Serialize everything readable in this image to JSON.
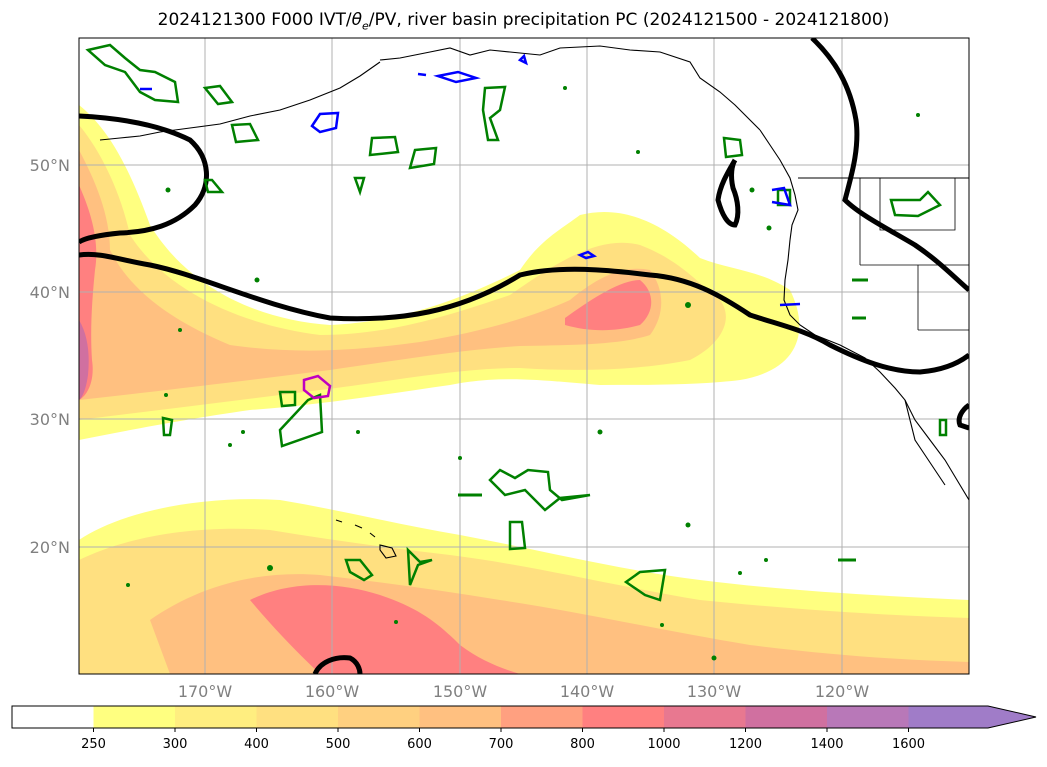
{
  "title": "2024121300 F000 IVT/θe/PV, river basin precipitation PC (2024121500 - 2024121800)",
  "title_parts": {
    "prefix": "2024121300 F000 IVT/",
    "theta": "θ",
    "theta_sub": "e",
    "suffix": "/PV, river basin precipitation PC (2024121500 - 2024121800)"
  },
  "map": {
    "lat_labels": [
      "50°N",
      "40°N",
      "30°N",
      "20°N"
    ],
    "lon_labels": [
      "170°W",
      "160°W",
      "150°W",
      "140°W",
      "130°W",
      "120°W"
    ],
    "contour_colors": {
      "pv_line": "#000000",
      "precip_pc_positive": "#008000",
      "precip_pc_negative": "#0000ff",
      "theta_e": "#c000c0"
    }
  },
  "colorbar": {
    "levels": [
      "250",
      "300",
      "400",
      "500",
      "600",
      "700",
      "800",
      "1000",
      "1200",
      "1400",
      "1600"
    ],
    "colors": [
      "#ffffff",
      "#ffff80",
      "#ffee80",
      "#ffe080",
      "#ffd080",
      "#ffc080",
      "#ffa080",
      "#ff8080",
      "#e87890",
      "#d070a0",
      "#b878b8",
      "#a07cc8"
    ],
    "extend": "max"
  }
}
